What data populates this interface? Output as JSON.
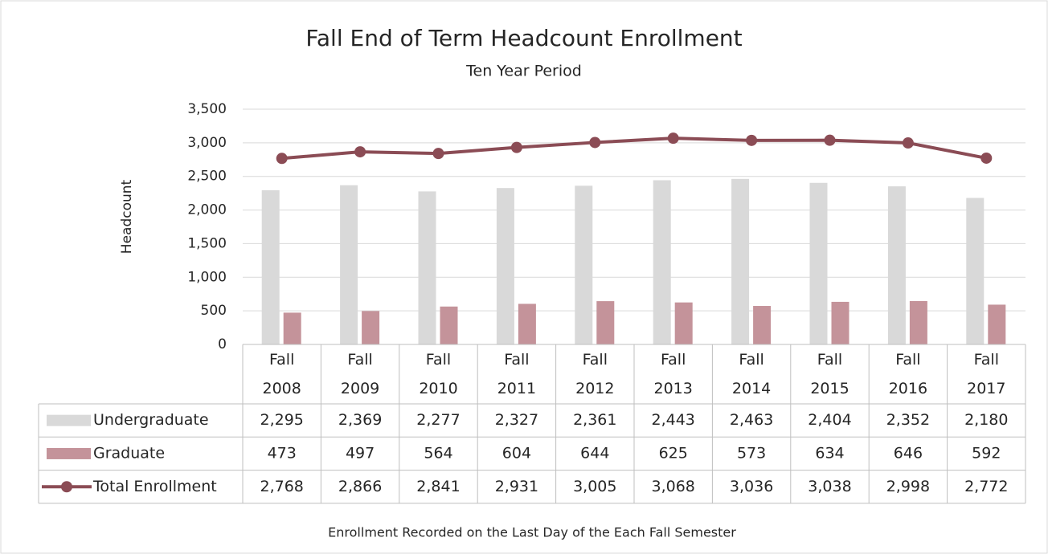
{
  "chart_data": {
    "type": "bar",
    "title": "Fall End of Term Headcount Enrollment",
    "subtitle": "Ten Year Period",
    "y_label": "Headcount",
    "footnote": "Enrollment Recorded on the Last Day of the Each Fall Semester",
    "categories": [
      "Fall 2008",
      "Fall 2009",
      "Fall 2010",
      "Fall 2011",
      "Fall 2012",
      "Fall 2013",
      "Fall 2014",
      "Fall 2015",
      "Fall 2016",
      "Fall 2017"
    ],
    "series": [
      {
        "name": "Undergraduate",
        "type": "bar",
        "color": "#d9d9d9",
        "values": [
          2295,
          2369,
          2277,
          2327,
          2361,
          2443,
          2463,
          2404,
          2352,
          2180
        ],
        "value_labels": [
          "2,295",
          "2,369",
          "2,277",
          "2,327",
          "2,361",
          "2,443",
          "2,463",
          "2,404",
          "2,352",
          "2,180"
        ]
      },
      {
        "name": "Graduate",
        "type": "bar",
        "color": "#c4939a",
        "values": [
          473,
          497,
          564,
          604,
          644,
          625,
          573,
          634,
          646,
          592
        ]
      },
      {
        "name": "Total Enrollment",
        "type": "line",
        "color": "#8b4c55",
        "values": [
          2768,
          2866,
          2841,
          2931,
          3005,
          3068,
          3036,
          3038,
          2998,
          2772
        ],
        "value_labels": [
          "2,768",
          "2,866",
          "2,841",
          "2,931",
          "3,005",
          "3,068",
          "3,036",
          "3,038",
          "2,998",
          "2,772"
        ]
      }
    ],
    "ylim": [
      0,
      3500
    ],
    "yticks": [
      0,
      500,
      {
        "value": 1000,
        "label": "1,000"
      },
      {
        "value": 1500,
        "label": "1,500"
      },
      {
        "value": 2000,
        "label": "2,000"
      },
      {
        "value": 2500,
        "label": "2,500"
      },
      {
        "value": 3000,
        "label": "3,000"
      },
      {
        "value": 3500,
        "label": "3,500"
      }
    ],
    "grid": true
  }
}
